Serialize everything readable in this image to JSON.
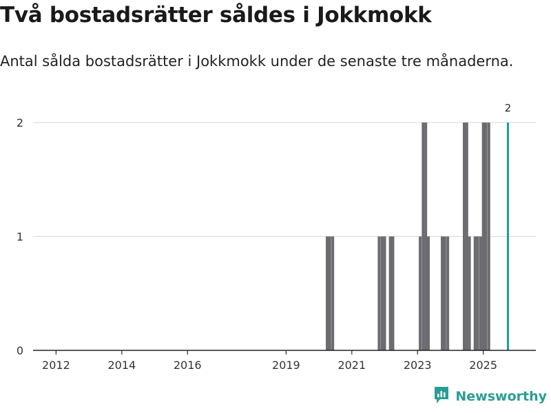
{
  "header": {
    "title": "Två bostadsrätter såldes i Jokkmokk",
    "subtitle": "Antal sålda bostadsrätter i Jokkmokk under de senaste tre månaderna."
  },
  "brand": {
    "name": "Newsworthy",
    "icon": "newsworthy-logo-icon",
    "color": "#2a9d93"
  },
  "colors": {
    "bar": "#6b6b70",
    "highlight": "#1a9e95",
    "grid": "#dddddd",
    "axis": "#222222"
  },
  "chart_data": {
    "type": "bar",
    "title": "Två bostadsrätter såldes i Jokkmokk",
    "subtitle": "Antal sålda bostadsrätter i Jokkmokk under de senaste tre månaderna.",
    "xlabel": "",
    "ylabel": "",
    "ylim": [
      0,
      2
    ],
    "yticks": [
      0,
      1,
      2
    ],
    "xlim": [
      2011.3,
      2026.6
    ],
    "xticks": [
      {
        "value": 2012,
        "label": "2012"
      },
      {
        "value": 2014,
        "label": "2014"
      },
      {
        "value": 2016,
        "label": "2016"
      },
      {
        "value": 2019,
        "label": "2019"
      },
      {
        "value": 2021,
        "label": "2021"
      },
      {
        "value": 2023,
        "label": "2023"
      },
      {
        "value": 2025,
        "label": "2025"
      }
    ],
    "grid": true,
    "series": [
      {
        "name": "Antal sålda bostadsrätter",
        "points": [
          {
            "x": 2020.25,
            "value": 1
          },
          {
            "x": 2020.33,
            "value": 1
          },
          {
            "x": 2020.42,
            "value": 1
          },
          {
            "x": 2021.83,
            "value": 1
          },
          {
            "x": 2021.92,
            "value": 1
          },
          {
            "x": 2022.0,
            "value": 1
          },
          {
            "x": 2022.17,
            "value": 1
          },
          {
            "x": 2022.25,
            "value": 1
          },
          {
            "x": 2023.08,
            "value": 1
          },
          {
            "x": 2023.17,
            "value": 2
          },
          {
            "x": 2023.25,
            "value": 2
          },
          {
            "x": 2023.33,
            "value": 1
          },
          {
            "x": 2023.75,
            "value": 1
          },
          {
            "x": 2023.83,
            "value": 1
          },
          {
            "x": 2023.92,
            "value": 1
          },
          {
            "x": 2024.42,
            "value": 2
          },
          {
            "x": 2024.5,
            "value": 2
          },
          {
            "x": 2024.58,
            "value": 1
          },
          {
            "x": 2024.75,
            "value": 1
          },
          {
            "x": 2024.83,
            "value": 1
          },
          {
            "x": 2024.92,
            "value": 1
          },
          {
            "x": 2025.0,
            "value": 2
          },
          {
            "x": 2025.08,
            "value": 2
          },
          {
            "x": 2025.17,
            "value": 2
          },
          {
            "x": 2025.75,
            "value": 2,
            "highlight": true,
            "label": "2"
          }
        ]
      }
    ]
  }
}
